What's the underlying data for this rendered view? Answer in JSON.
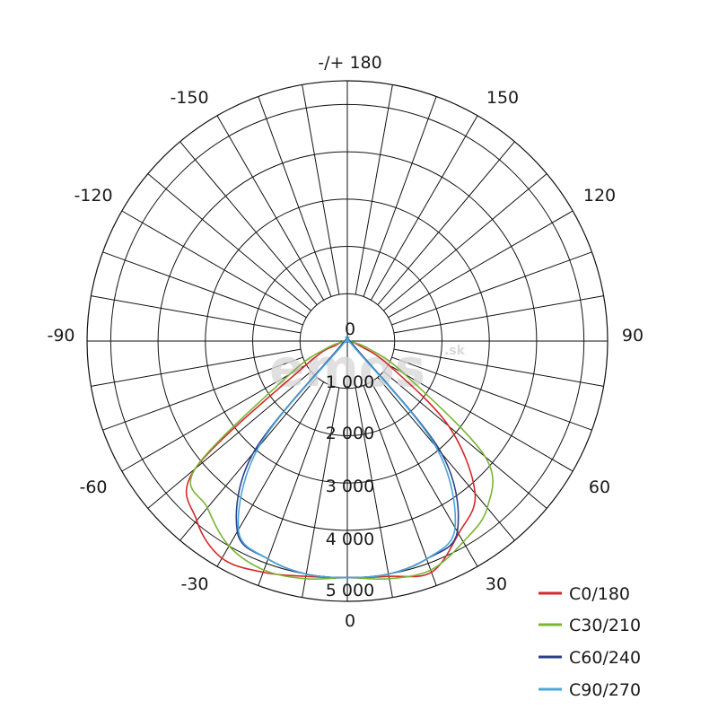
{
  "chart_data": {
    "type": "polar_line",
    "angle_labels": {
      "top": "-/+ 180",
      "left_150": "-150",
      "right_150": "150",
      "left_120": "-120",
      "right_120": "120",
      "left_90": "-90",
      "right_90": "90",
      "left_60": "-60",
      "right_60": "60",
      "left_30": "-30",
      "right_30": "30",
      "bottom": "0"
    },
    "radial_ticks": [
      "0",
      "1 000",
      "2 000",
      "3 000",
      "4 000",
      "5 000"
    ],
    "radial_max": 5500,
    "angle_step_deg": 10,
    "watermark": "emos",
    "watermark_suffix": ".sk",
    "series": [
      {
        "name": "C0/180",
        "color": "#d42a2a",
        "angles": [
          -90,
          -80,
          -70,
          -60,
          -50,
          -40,
          -30,
          -20,
          -10,
          0,
          10,
          20,
          30,
          40,
          50,
          60,
          70,
          80,
          90
        ],
        "values": [
          0,
          60,
          250,
          1000,
          4200,
          4950,
          5300,
          5200,
          5050,
          5000,
          5050,
          5200,
          4700,
          4200,
          2800,
          1000,
          250,
          60,
          0
        ]
      },
      {
        "name": "C30/210",
        "color": "#7ab536",
        "angles": [
          -90,
          -80,
          -70,
          -60,
          -50,
          -40,
          -30,
          -20,
          -10,
          0,
          10,
          20,
          30,
          40,
          50,
          60,
          70,
          80,
          90
        ],
        "values": [
          0,
          100,
          500,
          1400,
          4200,
          4600,
          5000,
          5150,
          5100,
          5000,
          5100,
          5150,
          4900,
          4600,
          3800,
          1400,
          500,
          100,
          0
        ]
      },
      {
        "name": "C60/240",
        "color": "#2d3f8c",
        "angles": [
          -90,
          -80,
          -70,
          -60,
          -50,
          -40,
          -30,
          -20,
          -10,
          0,
          10,
          20,
          30,
          40,
          50,
          60,
          70,
          80,
          90
        ],
        "values": [
          0,
          0,
          0,
          50,
          250,
          3100,
          4650,
          4900,
          5000,
          5000,
          5000,
          4900,
          4650,
          3100,
          250,
          50,
          0,
          0,
          0
        ]
      },
      {
        "name": "C90/270",
        "color": "#49a7d8",
        "angles": [
          -90,
          -80,
          -70,
          -60,
          -50,
          -40,
          -30,
          -20,
          -10,
          0,
          10,
          20,
          30,
          40,
          50,
          60,
          70,
          80,
          90
        ],
        "values": [
          0,
          0,
          0,
          50,
          150,
          2900,
          4600,
          4900,
          5000,
          5000,
          5000,
          4900,
          4550,
          2900,
          150,
          50,
          0,
          0,
          0
        ]
      }
    ]
  }
}
